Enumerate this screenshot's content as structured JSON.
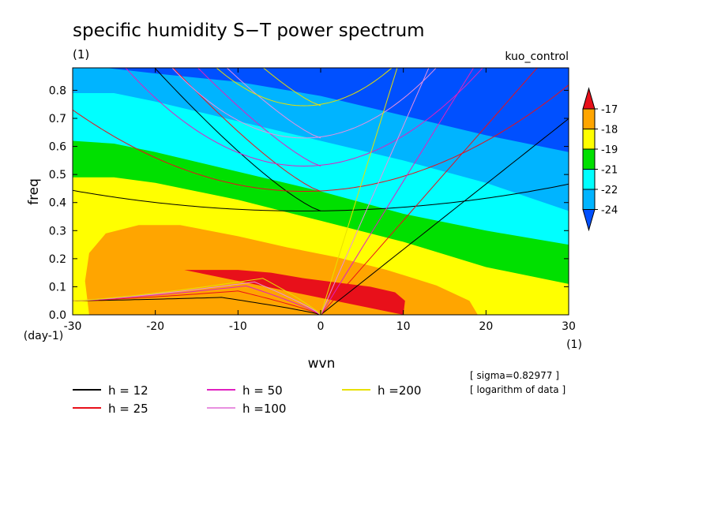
{
  "chart_data": {
    "type": "heatmap",
    "title": "specific humidity S−T power spectrum",
    "units_left": "(1)",
    "run_label": "kuo_control",
    "xlabel": "wvn",
    "ylabel": "freq",
    "x_units": "(1)",
    "y_units": "(day-1)",
    "xlim": [
      -30,
      30
    ],
    "ylim": [
      0,
      0.88
    ],
    "x_ticks": [
      -30,
      -20,
      -10,
      0,
      10,
      20,
      30
    ],
    "y_ticks": [
      0.0,
      0.1,
      0.2,
      0.3,
      0.4,
      0.5,
      0.6,
      0.7,
      0.8
    ],
    "colorbar": {
      "labels": [
        "-17",
        "-18",
        "-19",
        "-21",
        "-22",
        "-24"
      ],
      "colors": [
        "#e8101a",
        "#ffa500",
        "#ffff00",
        "#00e000",
        "#00ffff",
        "#00b4ff",
        "#0050ff"
      ]
    },
    "contour_levels": [
      {
        "label": "above -17",
        "color": "#e8101a",
        "boundary": [
          [
            -16.5,
            0.16
          ],
          [
            -14,
            0.16
          ],
          [
            -10,
            0.16
          ],
          [
            -6,
            0.15
          ],
          [
            -2,
            0.13
          ],
          [
            2,
            0.115
          ],
          [
            6,
            0.1
          ],
          [
            9,
            0.08
          ],
          [
            10.2,
            0.05
          ],
          [
            10,
            0.0
          ]
        ]
      },
      {
        "label": "-17 to -18",
        "color": "#ffa500",
        "boundary": [
          [
            -28,
            0.0
          ],
          [
            -28.5,
            0.12
          ],
          [
            -28,
            0.22
          ],
          [
            -26,
            0.29
          ],
          [
            -22,
            0.32
          ],
          [
            -17,
            0.32
          ],
          [
            -10,
            0.28
          ],
          [
            -4,
            0.24
          ],
          [
            2,
            0.205
          ],
          [
            8,
            0.16
          ],
          [
            14,
            0.105
          ],
          [
            18,
            0.05
          ],
          [
            19,
            0.0
          ]
        ]
      },
      {
        "label": "-18 to -19",
        "color": "#ffff00",
        "boundary": [
          [
            -30,
            0.49
          ],
          [
            -25,
            0.49
          ],
          [
            -20,
            0.47
          ],
          [
            -10,
            0.41
          ],
          [
            0,
            0.335
          ],
          [
            10,
            0.26
          ],
          [
            20,
            0.17
          ],
          [
            30,
            0.11
          ]
        ]
      },
      {
        "label": "-19 to -21",
        "color": "#00e000",
        "boundary": [
          [
            -30,
            0.62
          ],
          [
            -25,
            0.61
          ],
          [
            -20,
            0.58
          ],
          [
            -10,
            0.51
          ],
          [
            0,
            0.44
          ],
          [
            10,
            0.36
          ],
          [
            20,
            0.3
          ],
          [
            30,
            0.25
          ]
        ]
      },
      {
        "label": "-21 to -22",
        "color": "#00ffff",
        "boundary": [
          [
            -30,
            0.79
          ],
          [
            -25,
            0.79
          ],
          [
            -20,
            0.76
          ],
          [
            -10,
            0.69
          ],
          [
            0,
            0.62
          ],
          [
            10,
            0.55
          ],
          [
            20,
            0.47
          ],
          [
            30,
            0.37
          ]
        ]
      },
      {
        "label": "-22 to -24",
        "color": "#00b4ff",
        "boundary": [
          [
            -30,
            0.88
          ],
          [
            -26,
            0.88
          ],
          [
            -20,
            0.86
          ],
          [
            -10,
            0.83
          ],
          [
            0,
            0.78
          ],
          [
            10,
            0.71
          ],
          [
            20,
            0.64
          ],
          [
            30,
            0.58
          ]
        ]
      }
    ],
    "dispersion_legend": [
      {
        "label": "h = 12",
        "color": "#000000"
      },
      {
        "label": "h = 25",
        "color": "#e8101a"
      },
      {
        "label": "h = 50",
        "color": "#e020c0"
      },
      {
        "label": "h =100",
        "color": "#e890e0"
      },
      {
        "label": "h =200",
        "color": "#e8e000"
      }
    ],
    "dispersion_curves": [
      {
        "h": 12,
        "color": "#000000",
        "kelvin_slope": 0.0233,
        "eig_y0": 0.37,
        "eig_a": 9.35e-05,
        "eig_s": 0.0095,
        "kink_amp": 0.062,
        "kink_k0": -12
      },
      {
        "h": 25,
        "color": "#e8101a",
        "kelvin_slope": 0.0336,
        "eig_y0": 0.44,
        "eig_a": 0.00037,
        "eig_s": 0.013,
        "kink_amp": 0.085,
        "kink_k0": -10
      },
      {
        "h": 50,
        "color": "#e020c0",
        "kelvin_slope": 0.0476,
        "eig_y0": 0.53,
        "eig_a": 0.00075,
        "eig_s": 0.018,
        "kink_amp": 0.103,
        "kink_k0": -9
      },
      {
        "h": 100,
        "color": "#e890e0",
        "kelvin_slope": 0.0673,
        "eig_y0": 0.63,
        "eig_a": 0.00098,
        "eig_s": 0.026,
        "kink_amp": 0.117,
        "kink_k0": -8
      },
      {
        "h": 200,
        "color": "#e8e000",
        "kelvin_slope": 0.0951,
        "eig_y0": 0.745,
        "eig_a": 0.0012,
        "eig_s": 0.036,
        "kink_amp": 0.13,
        "kink_k0": -7
      }
    ],
    "notes": [
      "[ sigma=0.82977 ]",
      "[ logarithm of data ]"
    ]
  }
}
